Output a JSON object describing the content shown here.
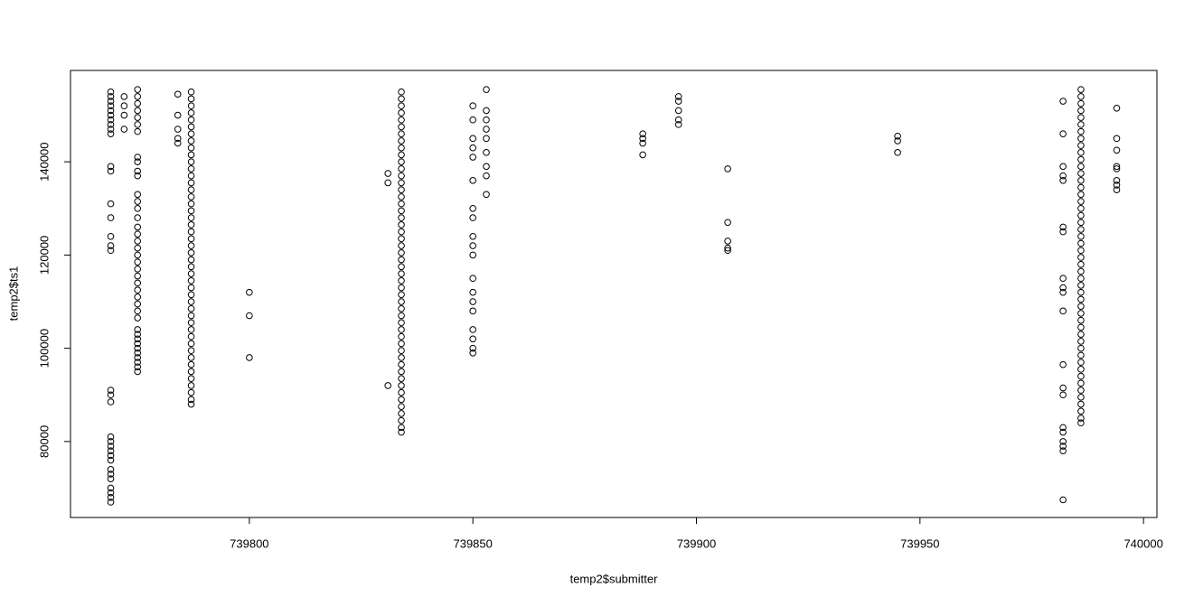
{
  "chart_data": {
    "type": "scatter",
    "xlabel": "temp2$submitter",
    "ylabel": "temp2$ts1",
    "color": "#000000",
    "grid": false,
    "xlim": [
      739760,
      740003
    ],
    "ylim": [
      63700,
      159600
    ],
    "xticks": [
      739800,
      739850,
      739900,
      739950,
      740000
    ],
    "yticks": [
      80000,
      100000,
      120000,
      140000
    ],
    "x": [
      739769,
      739769,
      739769,
      739769,
      739769,
      739769,
      739769,
      739769,
      739769,
      739769,
      739769,
      739769,
      739769,
      739769,
      739769,
      739769,
      739769,
      739769,
      739769,
      739769,
      739769,
      739769,
      739769,
      739769,
      739769,
      739769,
      739769,
      739769,
      739769,
      739769,
      739769,
      739769,
      739769,
      739772,
      739772,
      739772,
      739772,
      739775,
      739775,
      739775,
      739775,
      739775,
      739775,
      739775,
      739775,
      739775,
      739775,
      739775,
      739775,
      739775,
      739775,
      739775,
      739775,
      739775,
      739775,
      739775,
      739775,
      739775,
      739775,
      739775,
      739775,
      739775,
      739775,
      739775,
      739775,
      739775,
      739775,
      739775,
      739775,
      739775,
      739775,
      739775,
      739775,
      739775,
      739775,
      739775,
      739784,
      739784,
      739784,
      739784,
      739784,
      739787,
      739787,
      739787,
      739787,
      739787,
      739787,
      739787,
      739787,
      739787,
      739787,
      739787,
      739787,
      739787,
      739787,
      739787,
      739787,
      739787,
      739787,
      739787,
      739787,
      739787,
      739787,
      739787,
      739787,
      739787,
      739787,
      739787,
      739787,
      739787,
      739787,
      739787,
      739787,
      739787,
      739787,
      739787,
      739787,
      739787,
      739787,
      739787,
      739787,
      739787,
      739787,
      739787,
      739787,
      739787,
      739787,
      739800,
      739800,
      739800,
      739831,
      739831,
      739831,
      739834,
      739834,
      739834,
      739834,
      739834,
      739834,
      739834,
      739834,
      739834,
      739834,
      739834,
      739834,
      739834,
      739834,
      739834,
      739834,
      739834,
      739834,
      739834,
      739834,
      739834,
      739834,
      739834,
      739834,
      739834,
      739834,
      739834,
      739834,
      739834,
      739834,
      739834,
      739834,
      739834,
      739834,
      739834,
      739834,
      739834,
      739834,
      739834,
      739834,
      739834,
      739834,
      739834,
      739834,
      739834,
      739834,
      739834,
      739834,
      739834,
      739834,
      739850,
      739850,
      739850,
      739850,
      739850,
      739850,
      739850,
      739850,
      739850,
      739850,
      739850,
      739850,
      739850,
      739850,
      739850,
      739850,
      739850,
      739850,
      739850,
      739853,
      739853,
      739853,
      739853,
      739853,
      739853,
      739853,
      739853,
      739853,
      739888,
      739888,
      739888,
      739888,
      739896,
      739896,
      739896,
      739896,
      739896,
      739907,
      739907,
      739907,
      739907,
      739907,
      739945,
      739945,
      739945,
      739982,
      739982,
      739982,
      739982,
      739982,
      739982,
      739982,
      739982,
      739982,
      739982,
      739982,
      739982,
      739982,
      739982,
      739982,
      739982,
      739982,
      739982,
      739982,
      739982,
      739986,
      739986,
      739986,
      739986,
      739986,
      739986,
      739986,
      739986,
      739986,
      739986,
      739986,
      739986,
      739986,
      739986,
      739986,
      739986,
      739986,
      739986,
      739986,
      739986,
      739986,
      739986,
      739986,
      739986,
      739986,
      739986,
      739986,
      739986,
      739986,
      739986,
      739986,
      739986,
      739986,
      739986,
      739986,
      739986,
      739986,
      739986,
      739986,
      739986,
      739986,
      739986,
      739986,
      739986,
      739986,
      739986,
      739986,
      739986,
      739986,
      739994,
      739994,
      739994,
      739994,
      739994,
      739994,
      739994,
      739994
    ],
    "values": [
      155000,
      154000,
      153000,
      152000,
      151000,
      150000,
      149000,
      148000,
      147000,
      146000,
      139000,
      138000,
      131000,
      128000,
      124000,
      122000,
      121000,
      91000,
      90000,
      88500,
      81000,
      80000,
      79000,
      78000,
      77000,
      76000,
      74000,
      73000,
      72000,
      70000,
      69000,
      68000,
      67000,
      154000,
      152000,
      150000,
      147000,
      155500,
      154000,
      152500,
      151000,
      149500,
      148000,
      146500,
      141000,
      140000,
      138000,
      137000,
      133000,
      131500,
      130000,
      128000,
      126000,
      124500,
      123000,
      121500,
      120000,
      118500,
      117000,
      115500,
      114000,
      112500,
      111000,
      109500,
      108000,
      106500,
      104000,
      103000,
      102000,
      101000,
      100000,
      99000,
      98000,
      97000,
      96000,
      95000,
      154500,
      150000,
      147000,
      145000,
      144000,
      155000,
      153500,
      152000,
      150500,
      149000,
      147500,
      146000,
      144500,
      143000,
      141500,
      140000,
      138500,
      137000,
      135500,
      134000,
      132500,
      131000,
      129500,
      128000,
      126500,
      125000,
      123500,
      122000,
      120500,
      119000,
      117500,
      116000,
      114500,
      113000,
      111500,
      110000,
      108500,
      107000,
      105500,
      104000,
      102500,
      101000,
      99500,
      98000,
      96500,
      95000,
      93500,
      92000,
      90500,
      89000,
      88000,
      112000,
      107000,
      98000,
      137500,
      135500,
      92000,
      155000,
      153500,
      152000,
      150500,
      149000,
      147500,
      146000,
      144500,
      143000,
      141500,
      140000,
      138500,
      137000,
      135500,
      134000,
      132500,
      131000,
      129500,
      128000,
      126500,
      125000,
      123500,
      122000,
      120500,
      119000,
      117500,
      116000,
      114500,
      113000,
      111500,
      110000,
      108500,
      107000,
      105500,
      104000,
      102500,
      101000,
      99500,
      98000,
      96500,
      95000,
      93500,
      92000,
      90500,
      89000,
      87500,
      86000,
      84500,
      83000,
      82000,
      152000,
      149000,
      145000,
      143000,
      141000,
      136000,
      130000,
      128000,
      124000,
      122000,
      120000,
      115000,
      112000,
      110000,
      108000,
      104000,
      102000,
      100000,
      99000,
      155500,
      151000,
      149000,
      147000,
      145000,
      142000,
      139000,
      137000,
      133000,
      146000,
      145000,
      144000,
      141500,
      154000,
      153000,
      151000,
      149000,
      148000,
      138500,
      127000,
      123000,
      121500,
      121000,
      145500,
      144500,
      142000,
      153000,
      146000,
      139000,
      137000,
      136000,
      126000,
      125000,
      115000,
      113000,
      112000,
      108000,
      96500,
      91500,
      90000,
      83000,
      82000,
      80000,
      79000,
      78000,
      67500,
      155500,
      154000,
      152500,
      151000,
      149500,
      148000,
      146500,
      145000,
      143500,
      142000,
      140500,
      139000,
      137500,
      136000,
      134500,
      133000,
      131500,
      130000,
      128500,
      127000,
      125500,
      124000,
      122500,
      121000,
      119500,
      118000,
      116500,
      115000,
      113500,
      112000,
      110500,
      109000,
      107500,
      106000,
      104500,
      103000,
      101500,
      100000,
      98500,
      97000,
      95500,
      94000,
      92500,
      91000,
      89500,
      88000,
      86500,
      85000,
      84000,
      151500,
      145000,
      142500,
      139000,
      138500,
      136000,
      135000,
      134000
    ]
  }
}
